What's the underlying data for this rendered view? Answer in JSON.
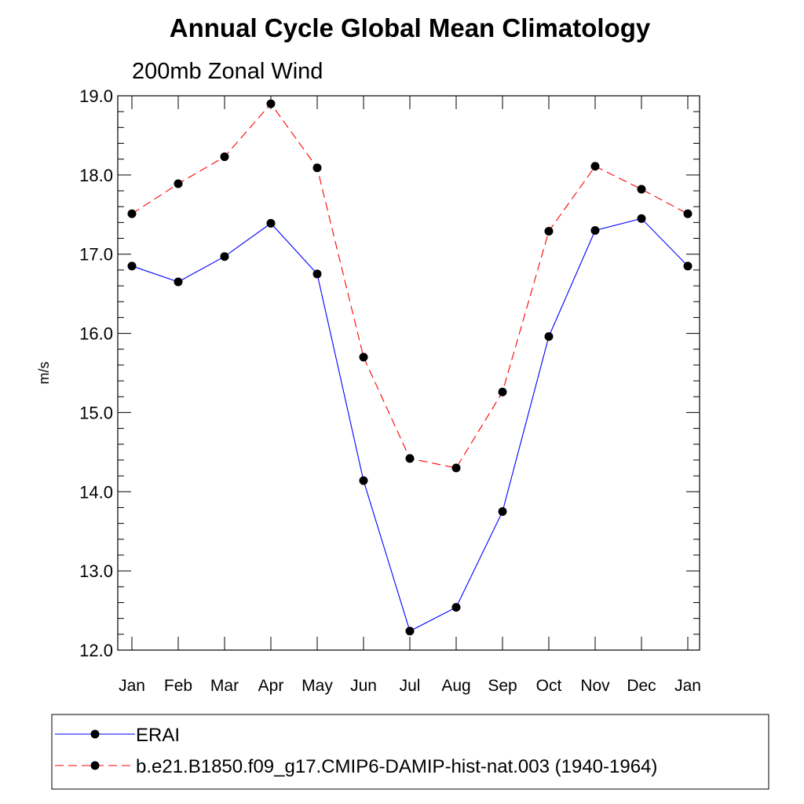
{
  "chart_data": {
    "type": "line",
    "title": "Annual Cycle Global Mean Climatology",
    "subtitle": "200mb Zonal Wind",
    "xlabel": "",
    "ylabel": "m/s",
    "ylim": [
      12.0,
      19.0
    ],
    "y_ticks": [
      "12.0",
      "13.0",
      "14.0",
      "15.0",
      "16.0",
      "17.0",
      "18.0",
      "19.0"
    ],
    "categories": [
      "Jan",
      "Feb",
      "Mar",
      "Apr",
      "May",
      "Jun",
      "Jul",
      "Aug",
      "Sep",
      "Oct",
      "Nov",
      "Dec",
      "Jan"
    ],
    "grid": false,
    "legend_position": "bottom",
    "series": [
      {
        "name": "ERAI",
        "color": "#0000ff",
        "style": "solid",
        "values": [
          16.85,
          16.65,
          16.97,
          17.39,
          16.75,
          14.14,
          12.24,
          12.54,
          13.75,
          15.96,
          17.3,
          17.45,
          16.85
        ]
      },
      {
        "name": "b.e21.B1850.f09_g17.CMIP6-DAMIP-hist-nat.003 (1940-1964)",
        "color": "#ff0000",
        "style": "dashed",
        "values": [
          17.51,
          17.89,
          18.23,
          18.9,
          18.09,
          15.7,
          14.42,
          14.3,
          15.26,
          17.29,
          18.11,
          17.82,
          17.51
        ]
      }
    ]
  }
}
